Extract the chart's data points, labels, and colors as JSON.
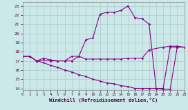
{
  "bg_color": "#cce8e8",
  "grid_color": "#aacccc",
  "line_color": "#880088",
  "xlabel": "Windchill (Refroidissement éolien,°C)",
  "xlim": [
    0,
    23
  ],
  "ylim": [
    13.8,
    23.4
  ],
  "xticks": [
    0,
    1,
    2,
    3,
    4,
    5,
    6,
    7,
    8,
    9,
    10,
    11,
    12,
    13,
    14,
    15,
    16,
    17,
    18,
    19,
    20,
    21,
    22,
    23
  ],
  "yticks": [
    14,
    15,
    16,
    17,
    18,
    19,
    20,
    21,
    22,
    23
  ],
  "line_upper_x": [
    0,
    1,
    2,
    3,
    4,
    5,
    6,
    7,
    8,
    9,
    10,
    11,
    12,
    13,
    14,
    15,
    16,
    17,
    18,
    19,
    20,
    21,
    22,
    23
  ],
  "line_upper_y": [
    17.5,
    17.5,
    17.0,
    17.3,
    17.1,
    17.0,
    17.0,
    17.5,
    17.5,
    19.3,
    19.5,
    22.1,
    22.3,
    22.3,
    22.5,
    23.0,
    21.7,
    21.6,
    21.0,
    14.0,
    13.9,
    13.9,
    18.5,
    18.5
  ],
  "line_mid_x": [
    0,
    1,
    2,
    3,
    4,
    5,
    6,
    7,
    8,
    9,
    10,
    11,
    12,
    13,
    14,
    15,
    16,
    17,
    18,
    20,
    21,
    22,
    23
  ],
  "line_mid_y": [
    17.5,
    17.5,
    17.0,
    17.1,
    17.0,
    17.0,
    17.0,
    17.0,
    17.5,
    17.2,
    17.2,
    17.2,
    17.2,
    17.2,
    17.2,
    17.3,
    17.3,
    17.3,
    18.2,
    18.5,
    18.6,
    18.6,
    18.5
  ],
  "line_lower_x": [
    0,
    1,
    2,
    3,
    4,
    5,
    6,
    7,
    8,
    9,
    10,
    11,
    12,
    13,
    14,
    15,
    16,
    17,
    18,
    19,
    20,
    21,
    22,
    23
  ],
  "line_lower_y": [
    17.5,
    17.5,
    17.0,
    16.8,
    16.5,
    16.3,
    16.0,
    15.8,
    15.5,
    15.3,
    15.0,
    14.8,
    14.6,
    14.5,
    14.3,
    14.2,
    14.0,
    14.0,
    14.0,
    14.0,
    14.0,
    18.5,
    18.5,
    18.5
  ]
}
